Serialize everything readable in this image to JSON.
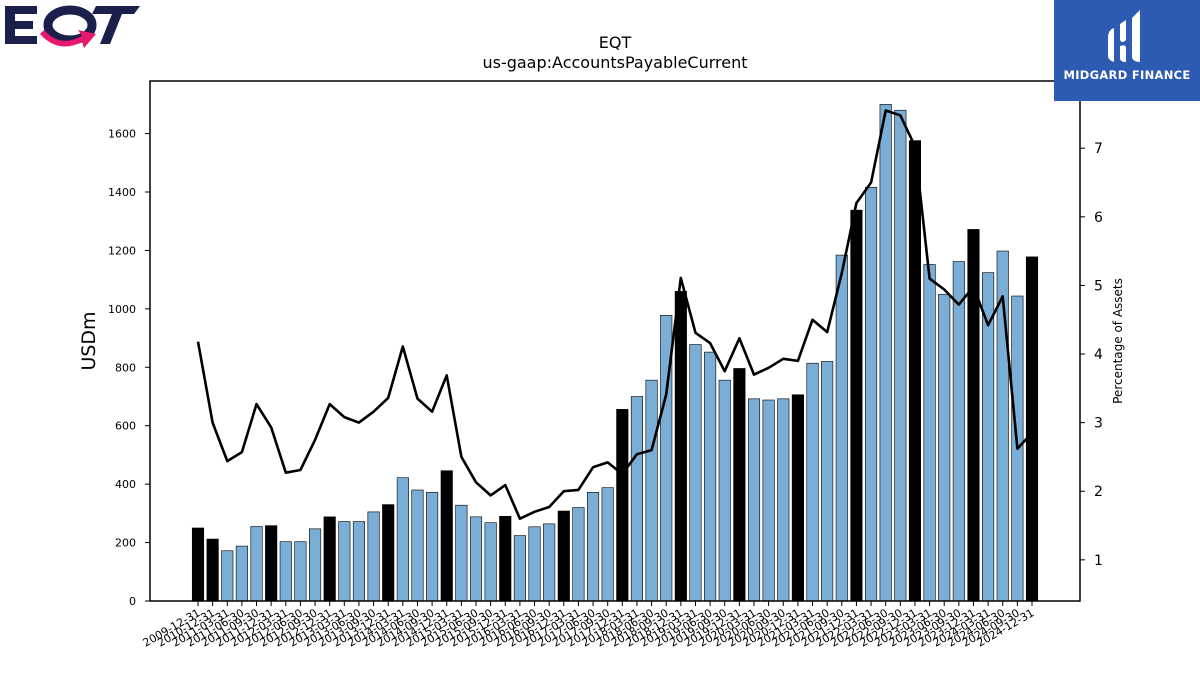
{
  "logos": {
    "company": "EQT",
    "brand": "MIDGARD FINANCE"
  },
  "colors": {
    "bar_quarter": "#7aaed6",
    "bar_year_end": "#000000",
    "line": "#000000",
    "eqt_navy": "#1a1f4b",
    "eqt_pink": "#e6196e",
    "brand_blue": "#2d5bb2"
  },
  "chart_data": {
    "type": "bar",
    "title": "EQT",
    "subtitle": "us-gaap:AccountsPayableCurrent",
    "ylabel": "USDm",
    "y2label": "Percentage of Assets",
    "ylim": [
      0,
      1780
    ],
    "y2lim": [
      0.4,
      7.98
    ],
    "yticks": [
      0,
      200,
      400,
      600,
      800,
      1000,
      1200,
      1400,
      1600
    ],
    "y2ticks": [
      1,
      2,
      3,
      4,
      5,
      6,
      7
    ],
    "grid": false,
    "legend": "none",
    "categories": [
      "2009-12-31",
      "2010-12-31",
      "2011-03-31",
      "2011-06-30",
      "2011-09-30",
      "2011-12-31",
      "2012-03-31",
      "2012-06-30",
      "2012-09-30",
      "2012-12-31",
      "2013-03-31",
      "2013-06-30",
      "2013-09-30",
      "2013-12-31",
      "2014-03-31",
      "2014-06-30",
      "2014-09-30",
      "2014-12-31",
      "2015-03-31",
      "2015-06-30",
      "2015-09-30",
      "2015-12-31",
      "2016-03-31",
      "2016-06-30",
      "2016-09-30",
      "2016-12-31",
      "2017-03-31",
      "2017-06-30",
      "2017-09-30",
      "2017-12-31",
      "2018-03-31",
      "2018-06-30",
      "2018-09-30",
      "2018-12-31",
      "2019-03-31",
      "2019-06-30",
      "2019-09-30",
      "2019-12-31",
      "2020-03-31",
      "2020-06-30",
      "2020-09-30",
      "2020-12-31",
      "2021-03-31",
      "2021-06-30",
      "2021-09-30",
      "2021-12-31",
      "2022-03-31",
      "2022-06-30",
      "2022-09-30",
      "2022-12-31",
      "2023-03-31",
      "2023-06-30",
      "2023-09-30",
      "2023-12-31",
      "2024-03-31",
      "2024-06-30",
      "2024-09-30",
      "2024-12-31"
    ],
    "series": [
      {
        "kind": "bar",
        "axis": "left",
        "values": [
          250,
          212,
          172,
          188,
          255,
          258,
          203,
          203,
          247,
          288,
          272,
          272,
          305,
          330,
          422,
          380,
          372,
          446,
          328,
          288,
          268,
          290,
          224,
          254,
          264,
          308,
          320,
          372,
          388,
          656,
          700,
          756,
          978,
          1060,
          878,
          852,
          756,
          796,
          692,
          688,
          692,
          706,
          814,
          820,
          1184,
          1338,
          1416,
          1700,
          1680,
          1576,
          1152,
          1050,
          1162,
          1272,
          1124,
          1198,
          1044,
          1178
        ],
        "year_end": [
          true,
          true,
          false,
          false,
          false,
          true,
          false,
          false,
          false,
          true,
          false,
          false,
          false,
          true,
          false,
          false,
          false,
          true,
          false,
          false,
          false,
          true,
          false,
          false,
          false,
          true,
          false,
          false,
          false,
          true,
          false,
          false,
          false,
          true,
          false,
          false,
          false,
          true,
          false,
          false,
          false,
          true,
          false,
          false,
          false,
          true,
          false,
          false,
          false,
          true,
          false,
          false,
          false,
          true,
          false,
          false,
          false,
          true
        ]
      },
      {
        "kind": "line",
        "axis": "right",
        "values": [
          4.18,
          3.0,
          2.44,
          2.57,
          3.27,
          2.93,
          2.27,
          2.31,
          2.75,
          3.27,
          3.08,
          3.0,
          3.16,
          3.36,
          4.11,
          3.35,
          3.16,
          3.69,
          2.5,
          2.13,
          1.94,
          2.09,
          1.6,
          1.7,
          1.77,
          2.0,
          2.02,
          2.35,
          2.42,
          2.25,
          2.54,
          2.6,
          3.41,
          5.11,
          4.31,
          4.16,
          3.75,
          4.23,
          3.7,
          3.8,
          3.93,
          3.9,
          4.5,
          4.32,
          5.18,
          6.2,
          6.5,
          7.55,
          7.48,
          7.03,
          5.1,
          4.94,
          4.72,
          4.98,
          4.42,
          4.84,
          2.62,
          2.85
        ]
      }
    ]
  }
}
